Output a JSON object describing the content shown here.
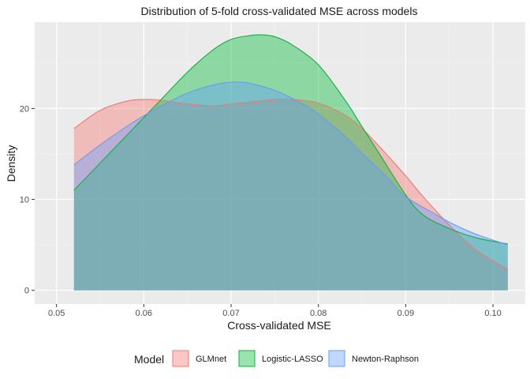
{
  "chart_data": {
    "type": "area",
    "title": "Distribution of 5-fold cross-validated MSE across models",
    "xlabel": "Cross-validated MSE",
    "ylabel": "Density",
    "xlim": [
      0.0475,
      0.1037
    ],
    "ylim": [
      -1.5,
      29.5
    ],
    "xticks": [
      0.05,
      0.06,
      0.07,
      0.08,
      0.09,
      0.1
    ],
    "xtick_labels": [
      "0.05",
      "0.06",
      "0.07",
      "0.08",
      "0.09",
      "0.10"
    ],
    "yticks": [
      0,
      10,
      20
    ],
    "ytick_labels": [
      "0",
      "10",
      "20"
    ],
    "grid": true,
    "legend": {
      "title": "Model",
      "position": "bottom"
    },
    "series": [
      {
        "name": "GLMnet",
        "color": "#F8766D",
        "x": [
          0.052,
          0.055,
          0.058,
          0.06,
          0.062,
          0.065,
          0.068,
          0.07,
          0.073,
          0.075,
          0.077,
          0.08,
          0.083,
          0.085,
          0.087,
          0.09,
          0.092,
          0.095,
          0.098,
          0.1017
        ],
        "y": [
          17.8,
          19.8,
          20.8,
          21.0,
          20.9,
          20.5,
          20.3,
          20.5,
          20.8,
          21.0,
          21.0,
          20.6,
          19.3,
          17.8,
          15.8,
          12.6,
          10.3,
          7.2,
          4.5,
          2.3
        ]
      },
      {
        "name": "Logistic-LASSO",
        "color": "#00BA38",
        "x": [
          0.052,
          0.055,
          0.058,
          0.06,
          0.062,
          0.065,
          0.068,
          0.07,
          0.072,
          0.0735,
          0.075,
          0.077,
          0.08,
          0.083,
          0.085,
          0.087,
          0.09,
          0.092,
          0.095,
          0.098,
          0.1017
        ],
        "y": [
          11.0,
          14.0,
          17.0,
          19.0,
          21.0,
          24.0,
          26.5,
          27.6,
          28.0,
          28.1,
          27.9,
          27.0,
          24.8,
          21.0,
          18.0,
          15.0,
          10.5,
          8.3,
          6.8,
          5.8,
          5.1
        ]
      },
      {
        "name": "Newton-Raphson",
        "color": "#619CFF",
        "x": [
          0.052,
          0.055,
          0.058,
          0.06,
          0.062,
          0.065,
          0.068,
          0.07,
          0.071,
          0.072,
          0.075,
          0.078,
          0.08,
          0.083,
          0.085,
          0.088,
          0.09,
          0.093,
          0.095,
          0.098,
          0.1017
        ],
        "y": [
          13.8,
          16.0,
          18.0,
          19.2,
          20.3,
          21.7,
          22.6,
          22.9,
          22.9,
          22.8,
          22.0,
          20.6,
          19.4,
          17.0,
          15.1,
          12.3,
          10.3,
          8.6,
          7.5,
          6.2,
          5.0
        ]
      }
    ]
  }
}
